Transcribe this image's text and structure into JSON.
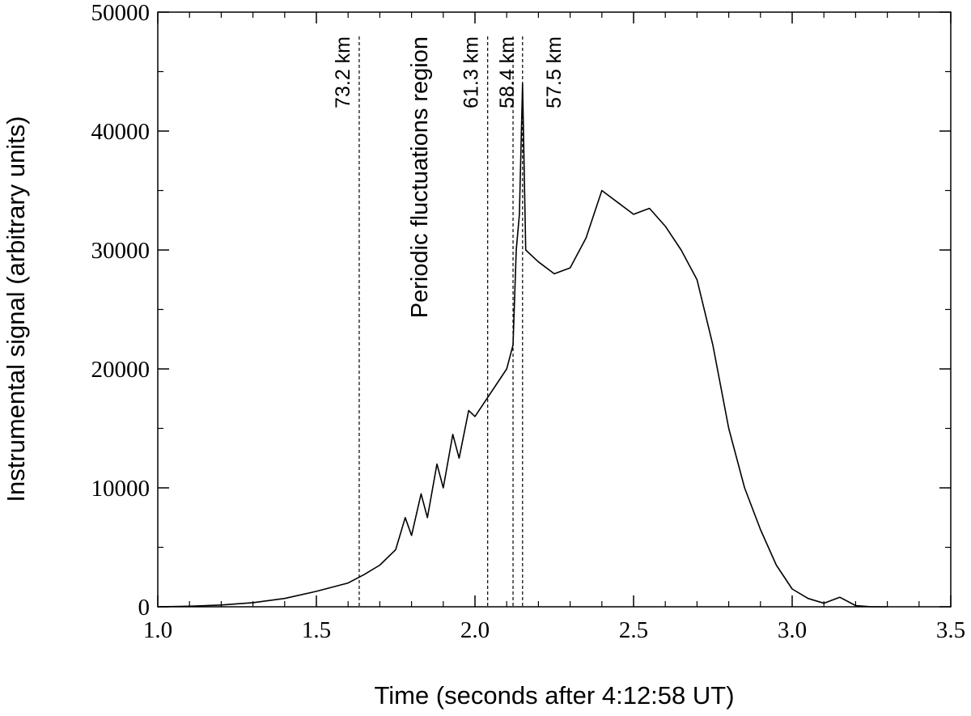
{
  "chart_data": {
    "type": "line",
    "xlabel": "Time (seconds after 4:12:58 UT)",
    "ylabel": "Instrumental signal (arbitrary units)",
    "xlim": [
      1,
      3.5
    ],
    "ylim": [
      0,
      50000
    ],
    "xticks": [
      {
        "value": 1,
        "label": "1.0"
      },
      {
        "value": 1.5,
        "label": "1.5"
      },
      {
        "value": 2,
        "label": "2.0"
      },
      {
        "value": 2.5,
        "label": "2.5"
      },
      {
        "value": 3,
        "label": "3.0"
      },
      {
        "value": 3.5,
        "label": "3.5"
      }
    ],
    "yticks": [
      0,
      10000,
      20000,
      30000,
      40000,
      50000
    ],
    "xminorticks": [
      1.1,
      1.2,
      1.3,
      1.4,
      1.6,
      1.7,
      1.8,
      1.9,
      2.1,
      2.2,
      2.3,
      2.4,
      2.6,
      2.7,
      2.8,
      2.9,
      3.1,
      3.2,
      3.3,
      3.4
    ],
    "yminorticks": [
      5000,
      15000,
      25000,
      35000,
      45000
    ],
    "color": "#000000",
    "x": [
      1.0,
      1.1,
      1.2,
      1.3,
      1.4,
      1.5,
      1.6,
      1.65,
      1.7,
      1.75,
      1.78,
      1.8,
      1.83,
      1.85,
      1.88,
      1.9,
      1.93,
      1.95,
      1.98,
      2.0,
      2.05,
      2.1,
      2.12,
      2.13,
      2.14,
      2.15,
      2.16,
      2.2,
      2.25,
      2.3,
      2.35,
      2.4,
      2.45,
      2.5,
      2.55,
      2.6,
      2.65,
      2.7,
      2.75,
      2.8,
      2.85,
      2.9,
      2.95,
      3.0,
      3.05,
      3.1,
      3.15,
      3.2,
      3.25,
      3.3
    ],
    "values": [
      0,
      50,
      150,
      350,
      700,
      1300,
      2000,
      2700,
      3500,
      4800,
      7500,
      6000,
      9500,
      7500,
      12000,
      10000,
      14500,
      12500,
      16500,
      16000,
      18000,
      20000,
      22000,
      30000,
      33000,
      44000,
      30000,
      29000,
      28000,
      28500,
      31000,
      35000,
      34000,
      33000,
      33500,
      32000,
      30000,
      27500,
      22000,
      15000,
      10000,
      6500,
      3500,
      1500,
      700,
      300,
      800,
      100,
      0,
      0
    ],
    "annotations": [
      {
        "x": 1.635,
        "label": "73.2 km"
      },
      {
        "x": 2.04,
        "label": "61.3 km"
      },
      {
        "x": 2.12,
        "label": "58.4 km"
      },
      {
        "x": 2.15,
        "label": "57.5 km"
      }
    ],
    "region_label": "Periodic fluctuations region"
  }
}
